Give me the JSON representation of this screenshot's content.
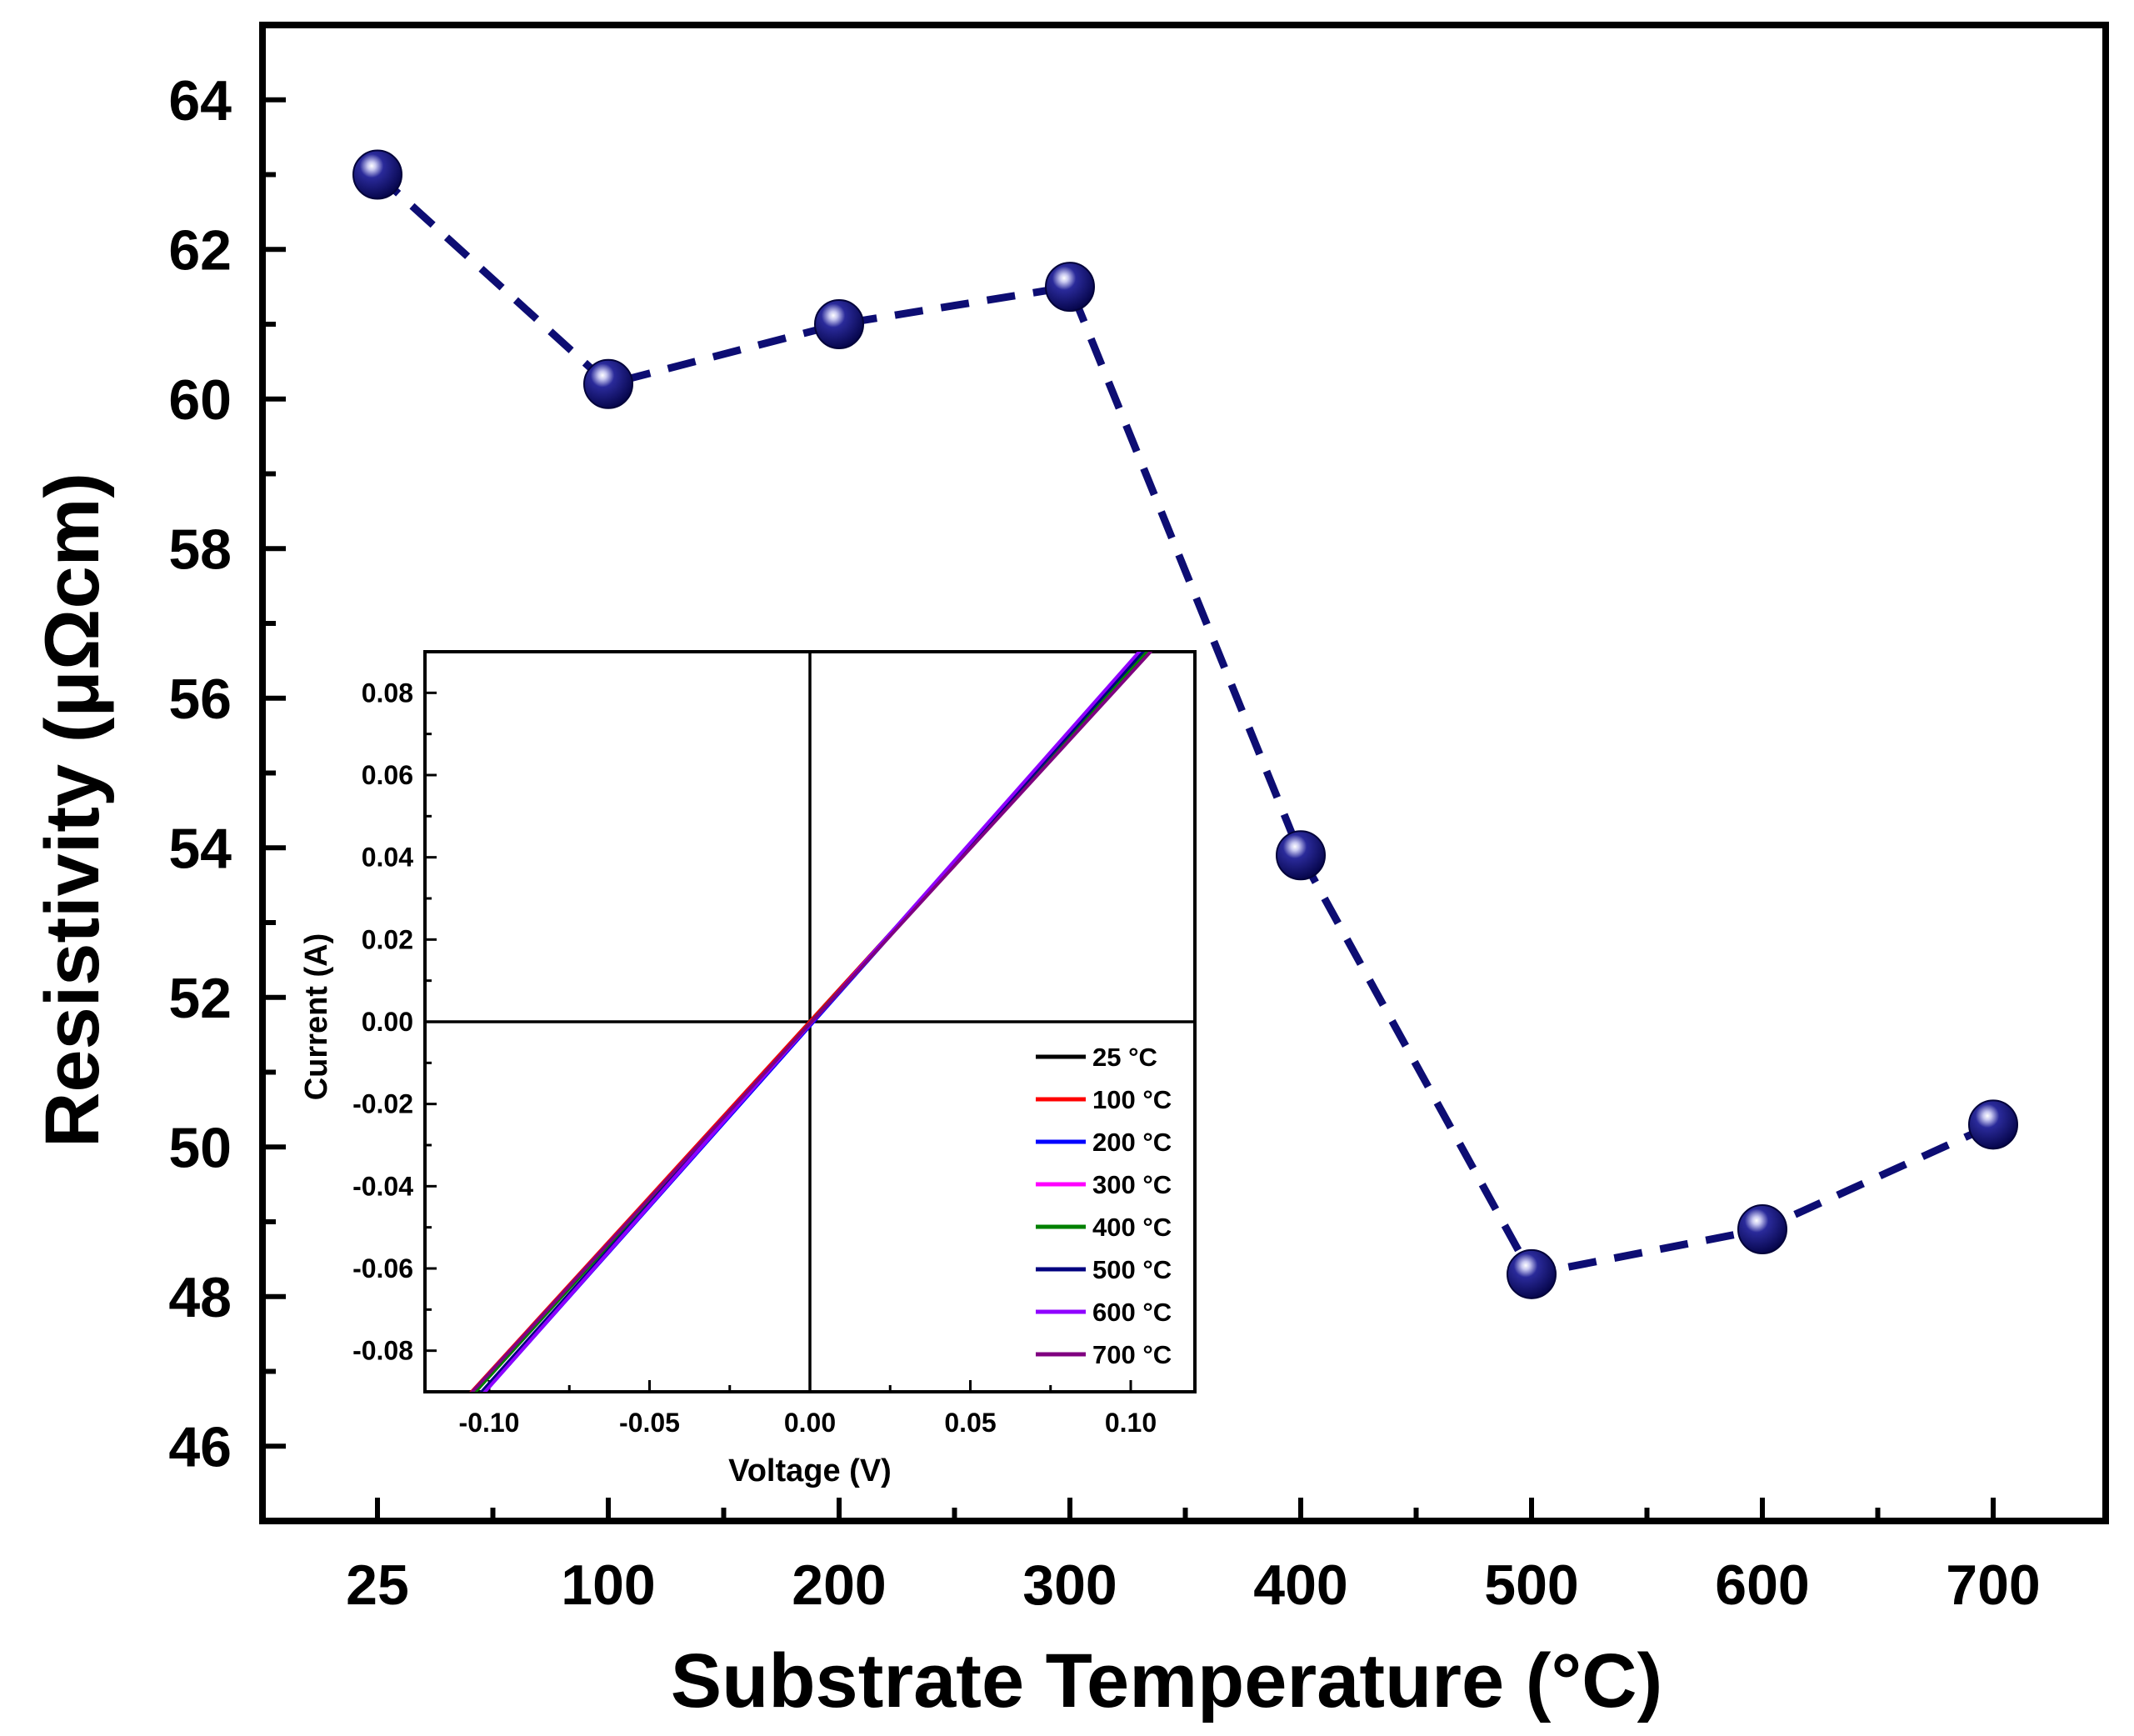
{
  "colors": {
    "main_series": "#0d0d73",
    "axis": "#000000",
    "background": "#ffffff"
  },
  "chart_data": [
    {
      "type": "line",
      "title": "",
      "xlabel": "Substrate Temperature (°C)",
      "ylabel": "Resistivity (μΩcm)",
      "categories": [
        "25",
        "100",
        "200",
        "300",
        "400",
        "500",
        "600",
        "700"
      ],
      "ylim": [
        45,
        65
      ],
      "yticks": [
        "46",
        "48",
        "50",
        "52",
        "54",
        "56",
        "58",
        "60",
        "62",
        "64"
      ],
      "series": [
        {
          "name": "Resistivity",
          "style": "dashed line with spherical markers",
          "values": [
            63.0,
            60.2,
            61.0,
            61.5,
            53.9,
            48.3,
            48.9,
            50.3
          ]
        }
      ],
      "grid": false
    },
    {
      "type": "line",
      "title": "inset",
      "xlabel": "Voltage (V)",
      "ylabel": "Current (A)",
      "xlim": [
        -0.12,
        0.12
      ],
      "ylim": [
        -0.09,
        0.09
      ],
      "xticks": [
        "-0.10",
        "-0.05",
        "0.00",
        "0.05",
        "0.10"
      ],
      "yticks": [
        "0.08",
        "0.06",
        "0.04",
        "0.02",
        "0.00",
        "-0.02",
        "-0.04",
        "-0.06",
        "-0.08"
      ],
      "legend_position": "bottom-right",
      "series": [
        {
          "name": "25 °C",
          "color": "#000000",
          "x": [
            -0.107,
            0.106
          ],
          "y": [
            -0.0915,
            0.0908
          ]
        },
        {
          "name": "100 °C",
          "color": "#ff0000",
          "x": [
            -0.107,
            0.106
          ],
          "y": [
            -0.0913,
            0.0906
          ]
        },
        {
          "name": "200 °C",
          "color": "#0000ff",
          "x": [
            -0.103,
            0.105
          ],
          "y": [
            -0.0915,
            0.0912
          ]
        },
        {
          "name": "300 °C",
          "color": "#ff00ff",
          "x": [
            -0.104,
            0.105
          ],
          "y": [
            -0.0915,
            0.091
          ]
        },
        {
          "name": "400 °C",
          "color": "#008000",
          "x": [
            -0.106,
            0.106
          ],
          "y": [
            -0.0915,
            0.0908
          ]
        },
        {
          "name": "500 °C",
          "color": "#00007f",
          "x": [
            -0.104,
            0.105
          ],
          "y": [
            -0.0915,
            0.0911
          ]
        },
        {
          "name": "600 °C",
          "color": "#8f00ff",
          "x": [
            -0.103,
            0.104
          ],
          "y": [
            -0.0915,
            0.0912
          ]
        },
        {
          "name": "700 °C",
          "color": "#800080",
          "x": [
            -0.107,
            0.107
          ],
          "y": [
            -0.0915,
            0.0907
          ]
        }
      ]
    }
  ]
}
